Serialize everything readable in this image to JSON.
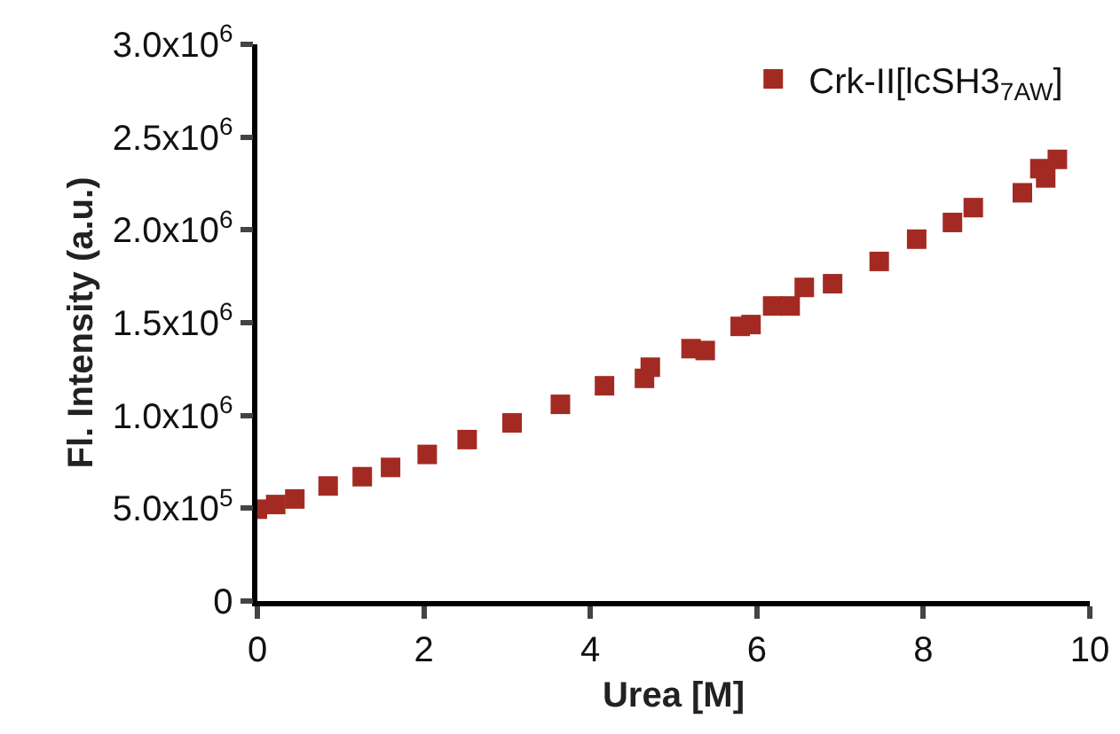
{
  "chart_data": {
    "type": "scatter",
    "xlabel": "Urea [M]",
    "ylabel": "Fl. Intensity (a.u.)",
    "x": [
      0,
      0.22,
      0.45,
      0.85,
      1.26,
      1.6,
      2.04,
      2.52,
      3.06,
      3.64,
      4.17,
      4.65,
      4.72,
      5.21,
      5.38,
      5.8,
      5.93,
      6.19,
      6.4,
      6.57,
      6.91,
      7.47,
      7.92,
      8.35,
      8.6,
      9.19,
      9.4,
      9.47,
      9.61
    ],
    "series": [
      {
        "name": "Crk-II[lcSH3$_{7AW}$]",
        "color": "#a32a22",
        "values": [
          495000,
          520000,
          550000,
          620000,
          670000,
          720000,
          790000,
          870000,
          960000,
          1060000,
          1160000,
          1200000,
          1260000,
          1360000,
          1350000,
          1480000,
          1490000,
          1590000,
          1590000,
          1690000,
          1710000,
          1830000,
          1950000,
          2040000,
          2120000,
          2200000,
          2330000,
          2280000,
          2380000
        ]
      }
    ],
    "xlim": [
      0,
      10
    ],
    "xticks": [
      0,
      2,
      4,
      6,
      8,
      10
    ],
    "ylim": [
      0,
      3000000
    ],
    "yticks": [
      0,
      {
        "value": 500000,
        "label": "5.0x10$^{5}$"
      },
      {
        "value": 1000000,
        "label": "1.0x10$^{6}$"
      },
      {
        "value": 1500000,
        "label": "1.5x10$^{6}$"
      },
      {
        "value": 2000000,
        "label": "2.0x10$^{6}$"
      },
      {
        "value": 2500000,
        "label": "2.5x10$^{6}$"
      },
      {
        "value": 3000000,
        "label": "3.0x10$^{6}$"
      }
    ],
    "marker": "square",
    "grid": false,
    "legend": "top right"
  }
}
